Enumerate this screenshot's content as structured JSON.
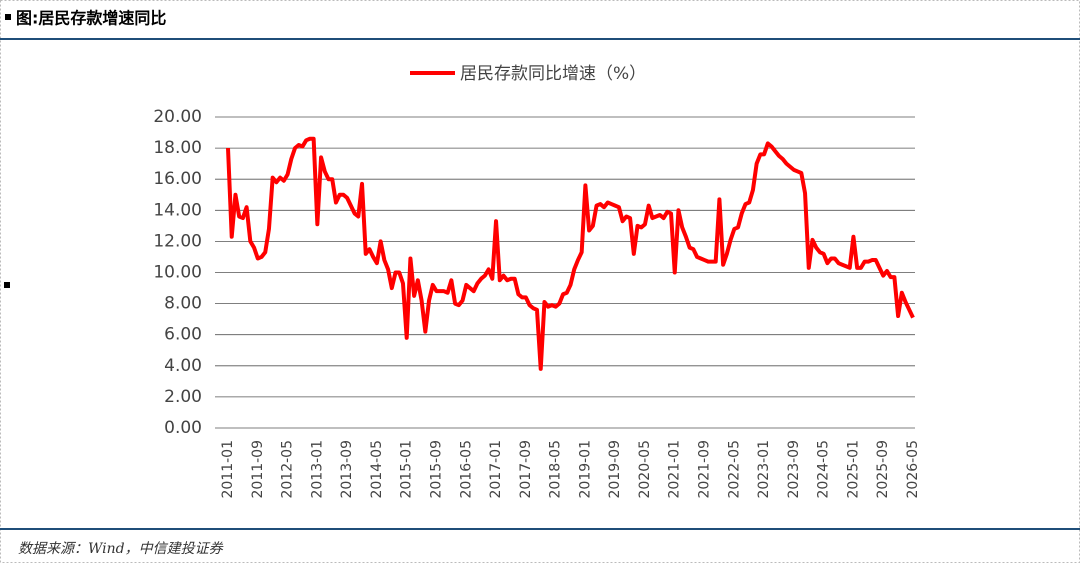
{
  "title": "图:居民存款增速同比",
  "source": "数据来源：Wind，中信建投证券",
  "chart_data": {
    "type": "line",
    "categories": [
      "2011-01",
      null,
      null,
      null,
      null,
      null,
      null,
      null,
      "2011-09",
      null,
      null,
      null,
      null,
      null,
      null,
      null,
      "2012-05",
      null,
      null,
      null,
      null,
      null,
      null,
      null,
      "2013-01",
      null,
      null,
      null,
      null,
      null,
      null,
      null,
      "2013-09",
      null,
      null,
      null,
      null,
      null,
      null,
      null,
      "2014-05",
      null,
      null,
      null,
      null,
      null,
      null,
      null,
      "2015-01",
      null,
      null,
      null,
      null,
      null,
      null,
      null,
      "2015-09",
      null,
      null,
      null,
      null,
      null,
      null,
      null,
      "2016-05",
      null,
      null,
      null,
      null,
      null,
      null,
      null,
      "2017-01",
      null,
      null,
      null,
      null,
      null,
      null,
      null,
      "2017-09",
      null,
      null,
      null,
      null,
      null,
      null,
      null,
      "2018-05",
      null,
      null,
      null,
      null,
      null,
      null,
      null,
      "2019-01",
      null,
      null,
      null,
      null,
      null,
      null,
      null,
      "2019-09",
      null,
      null,
      null,
      null,
      null,
      null,
      null,
      "2020-05",
      null,
      null,
      null,
      null,
      null,
      null,
      null,
      "2021-01",
      null,
      null,
      null,
      null,
      null,
      null,
      null,
      "2021-09",
      null,
      null,
      null,
      null,
      null,
      null,
      null,
      "2022-05",
      null,
      null,
      null,
      null,
      null,
      null,
      null,
      "2023-01",
      null,
      null,
      null,
      null,
      null,
      null,
      null,
      "2023-09",
      null,
      null,
      null,
      null,
      null,
      null,
      null,
      "2024-05",
      null,
      null,
      null,
      null,
      null,
      null,
      null,
      "2025-01",
      null,
      null,
      null,
      null,
      null,
      null,
      null,
      "2025-09",
      null,
      null,
      null,
      null,
      null,
      null,
      null,
      "2026-05"
    ],
    "series": [
      {
        "name": "居民存款同比增速（%）",
        "color": "#ff0000",
        "values": [
          18.0,
          12.3,
          15.0,
          13.6,
          13.5,
          14.2,
          12.0,
          11.6,
          10.9,
          11.0,
          11.3,
          12.8,
          16.1,
          15.8,
          16.1,
          15.9,
          16.3,
          17.3,
          18.0,
          18.2,
          18.1,
          18.5,
          18.6,
          18.6,
          13.1,
          17.4,
          16.5,
          16.0,
          16.0,
          14.5,
          15.0,
          15.0,
          14.8,
          14.3,
          13.8,
          13.6,
          15.7,
          11.2,
          11.5,
          11.0,
          10.6,
          12.0,
          10.8,
          10.2,
          9.0,
          10.0,
          10.0,
          9.3,
          5.8,
          10.9,
          8.5,
          9.5,
          8.2,
          6.2,
          8.2,
          9.2,
          8.8,
          8.8,
          8.8,
          8.7,
          9.5,
          8.0,
          7.9,
          8.2,
          9.2,
          9.0,
          8.8,
          9.3,
          9.6,
          9.8,
          10.2,
          9.6,
          13.3,
          9.5,
          9.8,
          9.5,
          9.6,
          9.6,
          8.6,
          8.4,
          8.4,
          7.9,
          7.7,
          7.6,
          3.8,
          8.1,
          7.8,
          7.9,
          7.8,
          8.0,
          8.6,
          8.7,
          9.2,
          10.2,
          10.8,
          11.3,
          15.6,
          12.7,
          13.0,
          14.3,
          14.4,
          14.2,
          14.5,
          14.4,
          14.3,
          14.2,
          13.3,
          13.6,
          13.5,
          11.2,
          13.0,
          12.9,
          13.1,
          14.3,
          13.5,
          13.6,
          13.7,
          13.5,
          13.9,
          13.8,
          10.0,
          14.0,
          12.9,
          12.3,
          11.6,
          11.5,
          11.0,
          10.9,
          10.8,
          10.7,
          10.7,
          10.7,
          14.7,
          10.5,
          11.2,
          12.1,
          12.8,
          12.9,
          13.8,
          14.4,
          14.5,
          15.3,
          17.0,
          17.6,
          17.6,
          18.3,
          18.1,
          17.8,
          17.5,
          17.3,
          17.0,
          16.8,
          16.6,
          16.5,
          16.4,
          15.1,
          10.3,
          12.1,
          11.6,
          11.3,
          11.2,
          10.6,
          10.9,
          10.9,
          10.6,
          10.5,
          10.4,
          10.3,
          12.3,
          10.3,
          10.3,
          10.7,
          10.7,
          10.8,
          10.8,
          10.3,
          9.8,
          10.1,
          9.7,
          9.7,
          7.2,
          8.7,
          8.1,
          7.6,
          7.1
        ]
      }
    ],
    "ylim": [
      0,
      20
    ],
    "yticks": [
      {
        "value": 0,
        "label": "0.00"
      },
      {
        "value": 2,
        "label": "2.00"
      },
      {
        "value": 4,
        "label": "4.00"
      },
      {
        "value": 6,
        "label": "6.00"
      },
      {
        "value": 8,
        "label": "8.00"
      },
      {
        "value": 10,
        "label": "10.00"
      },
      {
        "value": 12,
        "label": "12.00"
      },
      {
        "value": 14,
        "label": "14.00"
      },
      {
        "value": 16,
        "label": "16.00"
      },
      {
        "value": 18,
        "label": "18.00"
      },
      {
        "value": 20,
        "label": "20.00"
      }
    ],
    "grid": true,
    "legend": "top"
  }
}
